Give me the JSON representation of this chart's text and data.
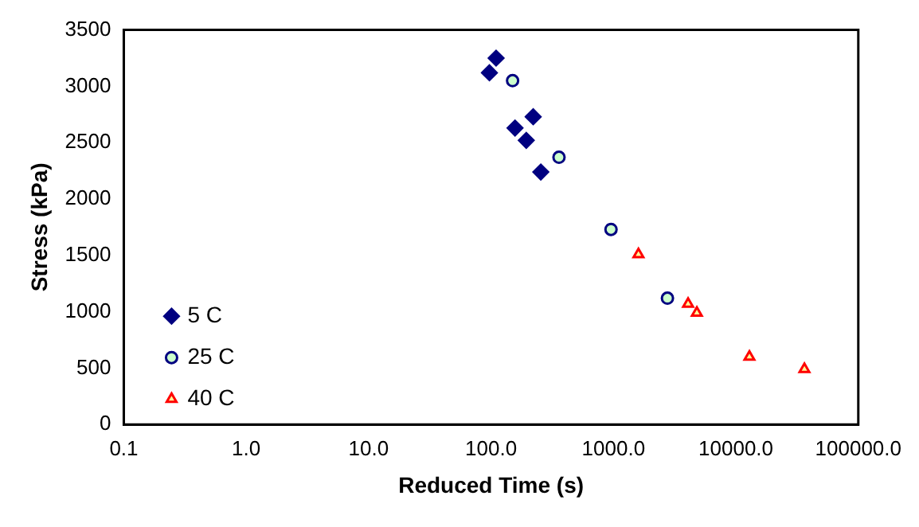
{
  "chart_data": {
    "type": "scatter",
    "xlabel": "Reduced Time (s)",
    "ylabel": "Stress (kPa)",
    "log": "x",
    "xlim": [
      0.1,
      100000
    ],
    "xticks": [
      {
        "value": 0.1,
        "label": "0.1"
      },
      {
        "value": 1,
        "label": "1.0"
      },
      {
        "value": 10,
        "label": "10.0"
      },
      {
        "value": 100,
        "label": "100.0"
      },
      {
        "value": 1000,
        "label": "1000.0"
      },
      {
        "value": 10000,
        "label": "10000.0"
      },
      {
        "value": 100000,
        "label": "100000.0"
      }
    ],
    "ylim": [
      0,
      3500
    ],
    "yticks": [
      0,
      500,
      1000,
      1500,
      2000,
      2500,
      3000,
      3500
    ],
    "grid": false,
    "legend": "bottom left",
    "series": [
      {
        "name": "5 C",
        "color": "#000080",
        "marker": "diamond",
        "x": [
          110,
          97,
          221,
          157,
          194,
          255
        ],
        "values": [
          3250,
          3120,
          2730,
          2630,
          2520,
          2240
        ]
      },
      {
        "name": "25 C",
        "color": "#000080",
        "marker": "circle",
        "x": [
          150,
          359,
          955,
          2760
        ],
        "values": [
          3050,
          2370,
          1730,
          1120
        ]
      },
      {
        "name": "40 C",
        "color": "#ff0000",
        "marker": "triangle",
        "x": [
          1600,
          4070,
          4800,
          12900,
          36300
        ],
        "values": [
          1510,
          1070,
          990,
          600,
          490
        ]
      }
    ]
  }
}
